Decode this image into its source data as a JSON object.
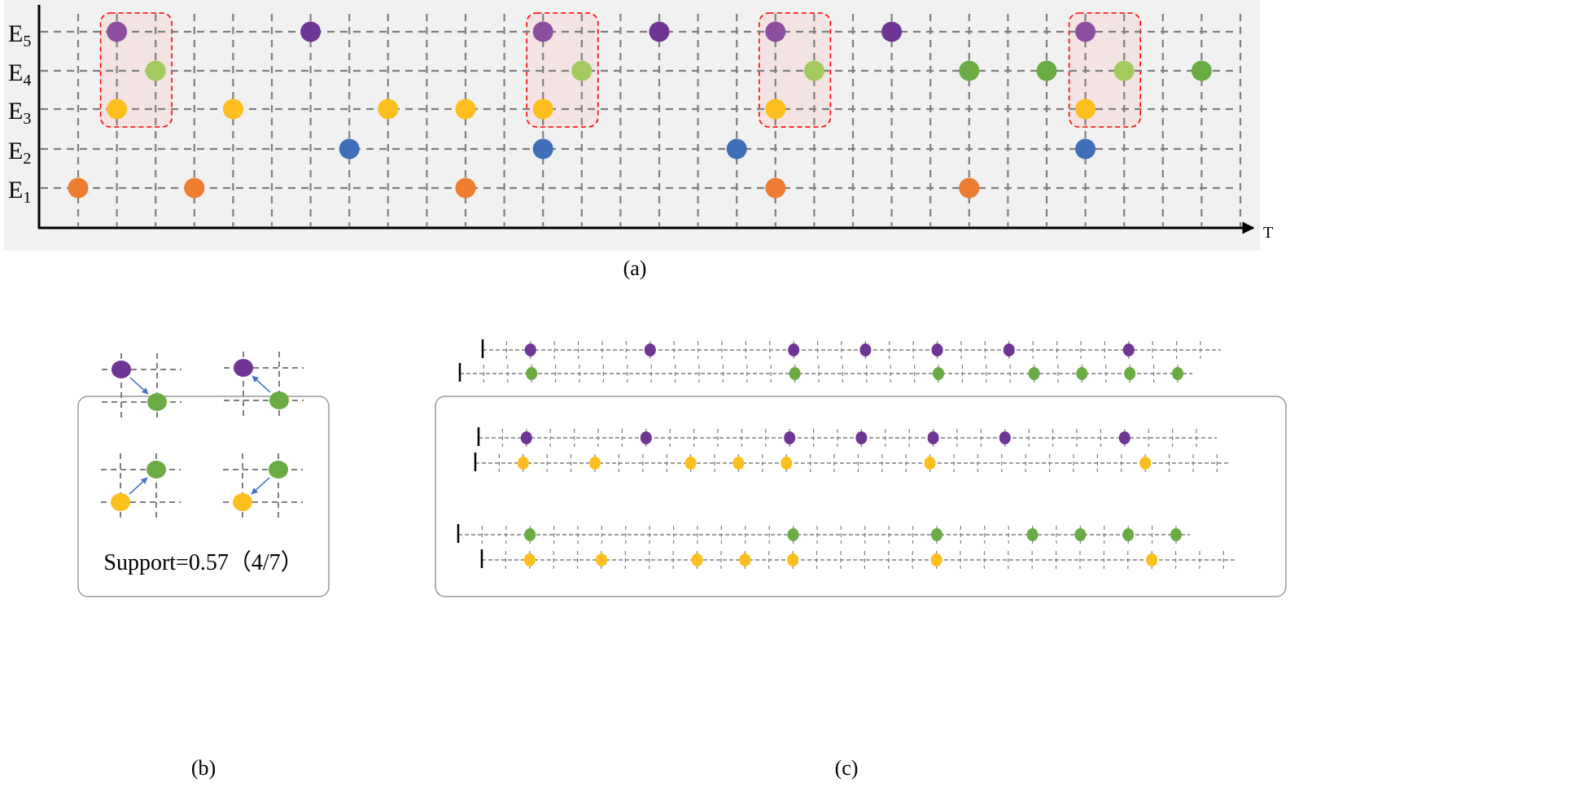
{
  "colors": {
    "purple": "#6f3595",
    "purple_light": "#8c4f9f",
    "green": "#6aab44",
    "green_light": "#a4c95f",
    "yellow": "#fdbf1d",
    "blue": "#3f6fb8",
    "orange": "#ec7d31",
    "grid": "#7f7f7f",
    "highlight_border": "#ff0000",
    "highlight_fill": "#f4e0e0",
    "arrow": "#4472c4",
    "panel_bg": "#f1f1f1"
  },
  "panel_a": {
    "caption": "(a)",
    "axis_label": "T",
    "rows": [
      {
        "label": "E",
        "sub": "5",
        "color": "purple",
        "events": [
          1,
          6,
          12,
          15,
          18,
          21,
          26
        ],
        "highlighted": [
          1,
          12,
          18,
          26
        ]
      },
      {
        "label": "E",
        "sub": "4",
        "color": "green",
        "events": [
          2,
          13,
          19,
          23,
          25,
          27,
          29
        ],
        "highlighted": [
          2,
          13,
          19,
          27
        ]
      },
      {
        "label": "E",
        "sub": "3",
        "color": "yellow",
        "events": [
          1,
          4,
          8,
          10,
          12,
          18,
          26
        ],
        "highlighted": []
      },
      {
        "label": "E",
        "sub": "2",
        "color": "blue",
        "events": [
          7,
          12,
          17,
          26
        ],
        "highlighted": []
      },
      {
        "label": "E",
        "sub": "1",
        "color": "orange",
        "events": [
          0,
          3,
          10,
          18,
          23
        ],
        "highlighted": []
      }
    ],
    "highlight_windows": [
      [
        1,
        2
      ],
      [
        12,
        13
      ],
      [
        18,
        19
      ],
      [
        26,
        27
      ]
    ]
  },
  "panel_b": {
    "caption": "(b)",
    "support_text": "Support=0.57（4/7）",
    "pairs": [
      {
        "upper": "purple",
        "lower": "green",
        "arrow": "upper-to-lower"
      },
      {
        "upper": "purple",
        "lower": "green",
        "arrow": "lower-to-upper"
      },
      {
        "upper": "green",
        "lower": "yellow",
        "arrow": "lower-to-upper"
      },
      {
        "upper": "green",
        "lower": "yellow",
        "arrow": "upper-to-lower"
      }
    ]
  },
  "panel_c": {
    "caption": "(c)",
    "groups": [
      [
        {
          "color": "purple",
          "events": [
            2,
            7,
            13,
            16,
            19,
            22,
            27
          ]
        },
        {
          "color": "green",
          "events": [
            3,
            14,
            20,
            24,
            26,
            28,
            30
          ]
        }
      ],
      [
        {
          "color": "purple",
          "events": [
            2,
            7,
            13,
            16,
            19,
            22,
            27
          ]
        },
        {
          "color": "yellow",
          "events": [
            2,
            5,
            9,
            11,
            13,
            19,
            28
          ]
        }
      ],
      [
        {
          "color": "green",
          "events": [
            3,
            14,
            20,
            24,
            26,
            28,
            30
          ]
        },
        {
          "color": "yellow",
          "events": [
            2,
            5,
            9,
            11,
            13,
            19,
            28
          ]
        }
      ]
    ]
  }
}
